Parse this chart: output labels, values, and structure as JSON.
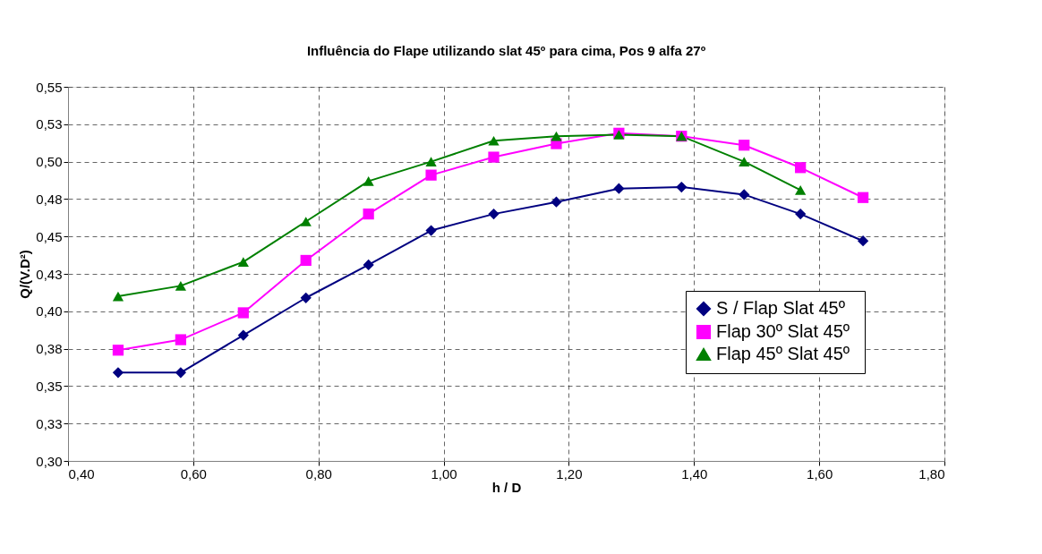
{
  "chart_data": {
    "type": "line",
    "title": "Influência do Flape utilizando slat 45º para cima, Pos 9 alfa 27º",
    "xlabel": "h / D",
    "ylabel": "Q/(V.D²)",
    "x": [
      0.48,
      0.58,
      0.68,
      0.78,
      0.88,
      0.98,
      1.08,
      1.18,
      1.28,
      1.38,
      1.48,
      1.57,
      1.67
    ],
    "series": [
      {
        "name": "S / Flap   Slat 45º",
        "color": "#000080",
        "marker": "diamond",
        "values": [
          0.359,
          0.359,
          0.384,
          0.409,
          0.431,
          0.454,
          0.465,
          0.473,
          0.482,
          0.483,
          0.478,
          0.465,
          0.447
        ]
      },
      {
        "name": "Flap 30º  Slat 45º",
        "color": "#ff00ff",
        "marker": "square",
        "values": [
          0.374,
          0.381,
          0.399,
          0.434,
          0.465,
          0.491,
          0.503,
          0.512,
          0.519,
          0.517,
          0.511,
          0.496,
          0.476
        ]
      },
      {
        "name": "Flap 45º  Slat 45º",
        "color": "#008000",
        "marker": "triangle",
        "values": [
          0.41,
          0.417,
          0.433,
          0.46,
          0.487,
          0.5,
          0.514,
          0.517,
          0.518,
          0.517,
          0.5,
          0.481,
          null
        ]
      }
    ],
    "xlim": [
      0.4,
      1.8
    ],
    "xticks": [
      {
        "value": 0.4,
        "label": "0,40"
      },
      {
        "value": 0.6,
        "label": "0,60"
      },
      {
        "value": 0.8,
        "label": "0,80"
      },
      {
        "value": 1.0,
        "label": "1,00"
      },
      {
        "value": 1.2,
        "label": "1,20"
      },
      {
        "value": 1.4,
        "label": "1,40"
      },
      {
        "value": 1.6,
        "label": "1,60"
      },
      {
        "value": 1.8,
        "label": "1,80"
      }
    ],
    "ylim": [
      0.3,
      0.55
    ],
    "yticks": [
      {
        "value": 0.3,
        "label": "0,30"
      },
      {
        "value": 0.325,
        "label": "0,33"
      },
      {
        "value": 0.35,
        "label": "0,35"
      },
      {
        "value": 0.375,
        "label": "0,38"
      },
      {
        "value": 0.4,
        "label": "0,40"
      },
      {
        "value": 0.425,
        "label": "0,43"
      },
      {
        "value": 0.45,
        "label": "0,45"
      },
      {
        "value": 0.475,
        "label": "0,48"
      },
      {
        "value": 0.5,
        "label": "0,50"
      },
      {
        "value": 0.525,
        "label": "0,53"
      },
      {
        "value": 0.55,
        "label": "0,55"
      }
    ],
    "grid": true,
    "legend": "right",
    "line_style": "solid"
  }
}
